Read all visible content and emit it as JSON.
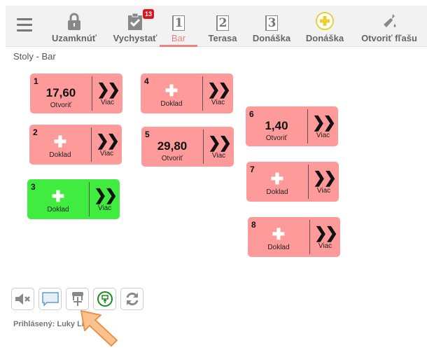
{
  "header": {
    "nav": [
      {
        "label": "Uzamknúť",
        "icon": "lock-icon"
      },
      {
        "label": "Vychystať",
        "icon": "clipboard-check-icon",
        "badge": "13"
      },
      {
        "label": "Bar",
        "icon": "number-1-icon",
        "num": "1",
        "active": true
      },
      {
        "label": "Terasa",
        "icon": "number-2-icon",
        "num": "2"
      },
      {
        "label": "Donáška",
        "icon": "number-3-icon",
        "num": "3"
      },
      {
        "label": "Donáška",
        "icon": "plus-circle-icon"
      },
      {
        "label": "Otvoriť fľašu",
        "icon": "bottle-icon"
      }
    ]
  },
  "breadcrumb": "Stoly - Bar",
  "tables": [
    {
      "no": "1",
      "amount": "17,60",
      "action": "Otvoriť",
      "more": "Viac"
    },
    {
      "no": "2",
      "amount": null,
      "action": "Doklad",
      "more": "Viac"
    },
    {
      "no": "3",
      "amount": null,
      "action": "Doklad",
      "more": "Viac",
      "color": "#3fec3f"
    },
    {
      "no": "4",
      "amount": null,
      "action": "Doklad",
      "more": "Viac"
    },
    {
      "no": "5",
      "amount": "29,80",
      "action": "Otvoriť",
      "more": "Viac"
    },
    {
      "no": "6",
      "amount": "1,40",
      "action": "Otvoriť",
      "more": "Viac"
    },
    {
      "no": "7",
      "amount": null,
      "action": "Doklad",
      "more": "Viac"
    },
    {
      "no": "8",
      "amount": null,
      "action": "Doklad",
      "more": "Viac"
    }
  ],
  "colors": {
    "table_default": "#ff9a9a",
    "table_active": "#3fec3f",
    "accent": "#f08080"
  },
  "toolbar": [
    "mute-icon",
    "message-icon",
    "move-table-icon",
    "transfer-icon",
    "refresh-icon"
  ],
  "logged_in": "Prihlásený: Luky LK"
}
